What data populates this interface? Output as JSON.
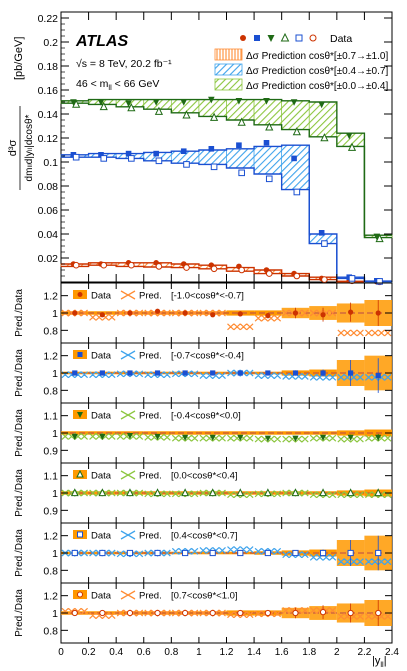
{
  "experiment": "ATLAS",
  "energy_lumi": "√s = 8 TeV, 20.2 fb⁻¹",
  "mass_window": "46 < m",
  "mass_window_sub": "ll",
  "mass_window_end": " < 66 GeV",
  "colors": {
    "red": "#cc3300",
    "red_band": "#ff8c33",
    "blue": "#1a4fd1",
    "blue_band": "#3ea3ec",
    "green": "#1f6a15",
    "green_band": "#8cc63f",
    "ratio_band": "#ff9900",
    "ratio_band_dark": "#e07f00",
    "ref_line": "#b84848"
  },
  "legend": {
    "data_label": "Data",
    "entries": [
      {
        "prefix": "Δσ Prediction cos",
        "theta": "θ",
        "suffix": "*[±0.7→±1.0]",
        "color": "red_band"
      },
      {
        "prefix": "Δσ Prediction cos",
        "theta": "θ",
        "suffix": "*[±0.4→±0.7]",
        "color": "blue_band"
      },
      {
        "prefix": "Δσ Prediction cos",
        "theta": "θ",
        "suffix": "*[±0.0→±0.4]",
        "color": "green_band"
      }
    ]
  },
  "chart_data": {
    "type": "line",
    "main": {
      "ylabel_num": "d³σ",
      "ylabel_den": "dmₗₗd|yₗₗ|dcosθ*",
      "ylabel_unit": "[pb/GeV]",
      "ylim": [
        0,
        0.225
      ],
      "yticks": [
        "0.02",
        "0.04",
        "0.06",
        "0.08",
        "0.1",
        "0.12",
        "0.14",
        "0.16",
        "0.18",
        "0.2",
        "0.22"
      ],
      "xlim": [
        0,
        2.4
      ],
      "bin_edges": [
        0,
        0.2,
        0.4,
        0.6,
        0.8,
        1.0,
        1.2,
        1.4,
        1.6,
        1.8,
        2.0,
        2.2,
        2.4
      ],
      "series": [
        {
          "color": "red",
          "marker": "circle",
          "band": "red_band",
          "lower": [
            0.013,
            0.014,
            0.013,
            0.0125,
            0.012,
            0.011,
            0.009,
            0.007,
            0.005,
            0.002,
            0.0003,
            0.0001
          ],
          "upper": [
            0.015,
            0.016,
            0.016,
            0.016,
            0.015,
            0.014,
            0.012,
            0.01,
            0.007,
            0.004,
            0.0006,
            0.0002
          ],
          "data": [
            0.015,
            0.015,
            0.016,
            0.016,
            0.015,
            0.014,
            0.013,
            0.01,
            0.007,
            0.003,
            0.001,
            0.0002
          ]
        },
        {
          "color": "red",
          "marker": "circle-open",
          "band": null,
          "lower": [
            0.013,
            0.014,
            0.013,
            0.0125,
            0.012,
            0.011,
            0.009,
            0.007,
            0.005,
            0.002,
            0.0003,
            0.0001
          ],
          "upper": [
            0.015,
            0.016,
            0.016,
            0.016,
            0.015,
            0.014,
            0.012,
            0.01,
            0.007,
            0.004,
            0.0006,
            0.0002
          ],
          "data": [
            0.014,
            0.014,
            0.014,
            0.013,
            0.012,
            0.011,
            0.01,
            0.007,
            0.005,
            0.002,
            0.001,
            0.0001
          ]
        },
        {
          "color": "blue",
          "marker": "square",
          "band": "blue_band",
          "lower": [
            0.104,
            0.104,
            0.103,
            0.101,
            0.099,
            0.098,
            0.095,
            0.09,
            0.077,
            0.032,
            0.003,
            0.0005
          ],
          "upper": [
            0.106,
            0.107,
            0.107,
            0.108,
            0.109,
            0.11,
            0.111,
            0.113,
            0.114,
            0.04,
            0.004,
            0.0008
          ],
          "data": [
            0.106,
            0.106,
            0.107,
            0.107,
            0.109,
            0.111,
            0.114,
            0.116,
            0.103,
            0.041,
            0.004,
            0.001
          ]
        },
        {
          "color": "blue",
          "marker": "square-open",
          "band": null,
          "lower": [
            0.104,
            0.104,
            0.103,
            0.101,
            0.099,
            0.098,
            0.095,
            0.09,
            0.077,
            0.032,
            0.003,
            0.0005
          ],
          "upper": [
            0.106,
            0.107,
            0.107,
            0.108,
            0.109,
            0.11,
            0.111,
            0.113,
            0.114,
            0.04,
            0.004,
            0.0008
          ],
          "data": [
            0.104,
            0.103,
            0.103,
            0.101,
            0.098,
            0.096,
            0.091,
            0.086,
            0.075,
            0.032,
            0.003,
            0.0005
          ]
        },
        {
          "color": "green",
          "marker": "triangle-down",
          "band": "green_band",
          "lower": [
            0.149,
            0.148,
            0.146,
            0.144,
            0.141,
            0.138,
            0.135,
            0.131,
            0.127,
            0.121,
            0.113,
            0.037
          ],
          "upper": [
            0.151,
            0.152,
            0.152,
            0.152,
            0.152,
            0.152,
            0.152,
            0.152,
            0.151,
            0.15,
            0.124,
            0.039
          ],
          "data": [
            0.15,
            0.15,
            0.149,
            0.15,
            0.15,
            0.152,
            0.151,
            0.151,
            0.15,
            0.148,
            0.122,
            0.038
          ]
        },
        {
          "color": "green",
          "marker": "triangle-up-open",
          "band": null,
          "lower": [
            0.149,
            0.148,
            0.146,
            0.144,
            0.141,
            0.138,
            0.135,
            0.131,
            0.127,
            0.121,
            0.113,
            0.037
          ],
          "upper": [
            0.151,
            0.152,
            0.152,
            0.152,
            0.152,
            0.152,
            0.152,
            0.152,
            0.151,
            0.15,
            0.124,
            0.039
          ],
          "data": [
            0.148,
            0.146,
            0.145,
            0.142,
            0.139,
            0.137,
            0.133,
            0.129,
            0.125,
            0.12,
            0.112,
            0.036
          ]
        }
      ]
    },
    "ratio": {
      "ylabel": "Pred./Data",
      "xlabel": "|y",
      "xlabel_sub": "ll",
      "xlabel_end": "|",
      "xticks": [
        "0",
        "0.2",
        "0.4",
        "0.6",
        "0.8",
        "1",
        "1.2",
        "1.4",
        "1.6",
        "1.8",
        "2",
        "2.2",
        "2.4"
      ],
      "panels": [
        {
          "range": "[-1.0<cosθ*<-0.7]",
          "color": "red",
          "marker": "circle",
          "ylim": [
            0.7,
            1.3
          ],
          "yticks": [
            "0.8",
            "1",
            "1.2"
          ],
          "band_unc": [
            0.02,
            0.02,
            0.02,
            0.02,
            0.02,
            0.02,
            0.03,
            0.03,
            0.06,
            0.08,
            0.11,
            0.15
          ],
          "pred": [
            1.0,
            0.95,
            1.0,
            1.0,
            1.0,
            1.0,
            0.84,
            0.94,
            1.0,
            1.0,
            0.77,
            0.77
          ],
          "points": [
            1.0,
            0.98,
            1.0,
            1.02,
            1.0,
            0.98,
            0.99,
            0.97,
            1.0,
            0.98,
            1.01,
            1.0
          ]
        },
        {
          "range": "[-0.7<cosθ*<-0.4]",
          "color": "blue",
          "marker": "square",
          "ylim": [
            0.7,
            1.3
          ],
          "yticks": [
            "0.8",
            "1",
            "1.2"
          ],
          "band_unc": [
            0.015,
            0.015,
            0.015,
            0.015,
            0.015,
            0.015,
            0.015,
            0.015,
            0.03,
            0.04,
            0.15,
            0.2
          ],
          "pred": [
            0.98,
            0.98,
            0.99,
            0.98,
            0.99,
            0.97,
            1.0,
            0.97,
            0.96,
            0.95,
            0.95,
            0.95
          ],
          "points": [
            1.0,
            1.0,
            1.0,
            1.0,
            1.0,
            1.0,
            1.0,
            1.0,
            1.0,
            1.0,
            1.0,
            0.97
          ]
        },
        {
          "range": "[-0.4<cosθ*<0.0]",
          "color": "green",
          "marker": "triangle-down",
          "ylim": [
            0.85,
            1.15
          ],
          "yticks": [
            "0.9",
            "1",
            "1.1"
          ],
          "band_unc": [
            0.01,
            0.01,
            0.01,
            0.01,
            0.01,
            0.01,
            0.01,
            0.01,
            0.01,
            0.01,
            0.015,
            0.02
          ],
          "pred": [
            0.98,
            0.98,
            0.98,
            0.975,
            0.97,
            0.97,
            0.97,
            0.965,
            0.965,
            0.97,
            0.965,
            0.97
          ],
          "points": [
            0.98,
            0.98,
            0.985,
            0.98,
            0.975,
            0.975,
            0.975,
            0.97,
            0.97,
            0.975,
            0.975,
            0.975
          ]
        },
        {
          "range": "[0.0<cosθ*<0.4]",
          "color": "green",
          "marker": "triangle-up-open",
          "ylim": [
            0.85,
            1.15
          ],
          "yticks": [
            "0.9",
            "1",
            "1.1"
          ],
          "band_unc": [
            0.01,
            0.01,
            0.01,
            0.01,
            0.01,
            0.01,
            0.01,
            0.01,
            0.01,
            0.01,
            0.015,
            0.02
          ],
          "pred": [
            1.0,
            1.0,
            1.0,
            0.995,
            0.995,
            1.0,
            0.99,
            0.995,
            1.0,
            0.99,
            0.99,
            0.99
          ],
          "points": [
            1.0,
            1.0,
            1.0,
            1.0,
            1.0,
            1.0,
            1.0,
            1.0,
            1.0,
            1.0,
            1.0,
            1.0
          ]
        },
        {
          "range": "[0.4<cosθ*<0.7]",
          "color": "blue",
          "marker": "square-open",
          "ylim": [
            0.7,
            1.3
          ],
          "yticks": [
            "0.8",
            "1",
            "1.2"
          ],
          "band_unc": [
            0.015,
            0.015,
            0.015,
            0.015,
            0.015,
            0.015,
            0.015,
            0.02,
            0.03,
            0.04,
            0.15,
            0.2
          ],
          "pred": [
            1.0,
            1.0,
            0.99,
            1.0,
            1.02,
            1.03,
            1.04,
            1.02,
            0.98,
            0.95,
            0.9,
            0.9
          ],
          "points": [
            1.0,
            1.0,
            1.0,
            1.0,
            1.0,
            1.0,
            1.0,
            1.0,
            1.0,
            1.0,
            1.0,
            1.0
          ]
        },
        {
          "range": "[0.7<cosθ*<1.0]",
          "color": "red",
          "marker": "circle-open",
          "ylim": [
            0.7,
            1.3
          ],
          "yticks": [
            "0.8",
            "1",
            "1.2"
          ],
          "band_unc": [
            0.02,
            0.02,
            0.02,
            0.02,
            0.02,
            0.02,
            0.03,
            0.03,
            0.06,
            0.08,
            0.11,
            0.15
          ],
          "pred": [
            1.02,
            0.97,
            1.0,
            1.0,
            1.0,
            1.0,
            0.98,
            0.99,
            1.03,
            1.03,
            0.96,
            0.96
          ],
          "points": [
            1.0,
            1.0,
            1.0,
            1.0,
            1.0,
            1.0,
            1.0,
            1.0,
            1.0,
            1.01,
            1.0,
            1.0
          ]
        }
      ],
      "data_label": "Data",
      "pred_label": "Pred."
    }
  }
}
